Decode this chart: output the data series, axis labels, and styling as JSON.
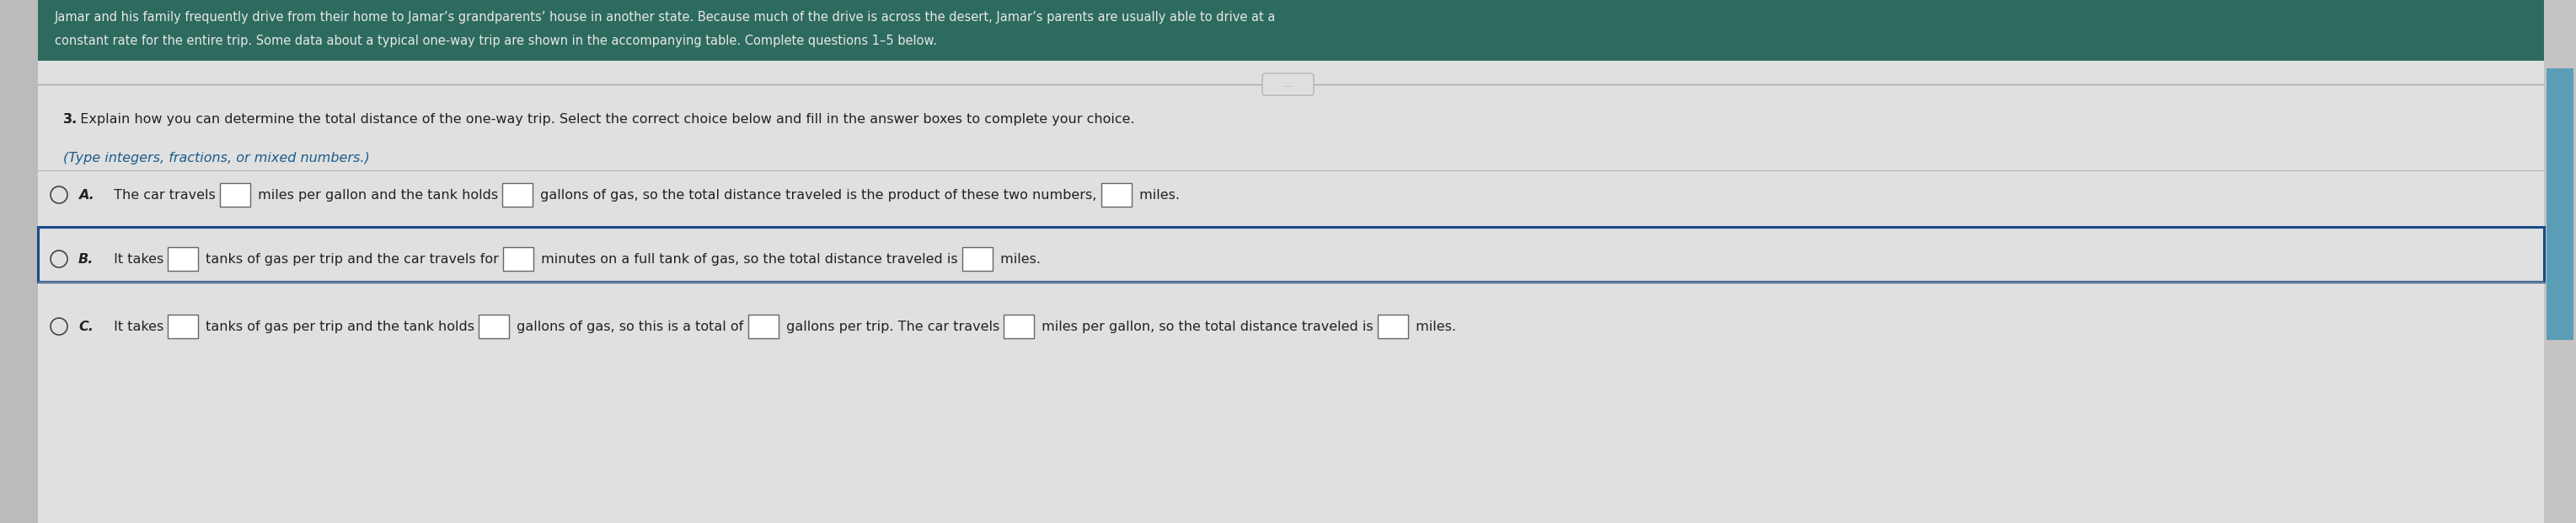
{
  "header_bg_color": "#2d6b5e",
  "body_bg_color": "#cccccc",
  "content_bg_color": "#e0e0e0",
  "header_text_line1": "Jamar and his family frequently drive from their home to Jamar’s grandparents’ house in another state. Because much of the drive is across the desert, Jamar’s parents are usually able to drive at a",
  "header_text_line2": "constant rate for the entire trip. Some data about a typical one-way trip are shown in the accompanying table. Complete questions 1–5 below.",
  "divider_button_text": "…",
  "question_text": "3. Explain how you can determine the total distance of the one-way trip. Select the correct choice below and fill in the answer boxes to complete your choice.",
  "type_hint": "(Type integers, fractions, or mixed numbers.)",
  "scrollbar_color": "#5b9db5",
  "text_color": "#222222",
  "box_border_color": "#666666",
  "radio_color": "#444444",
  "highlight_border_color": "#1a4a8a",
  "highlight_fill_color": "#dde8f0",
  "font_size": 11.5,
  "header_font_size": 10.5,
  "figw": 30.57,
  "figh": 6.2
}
